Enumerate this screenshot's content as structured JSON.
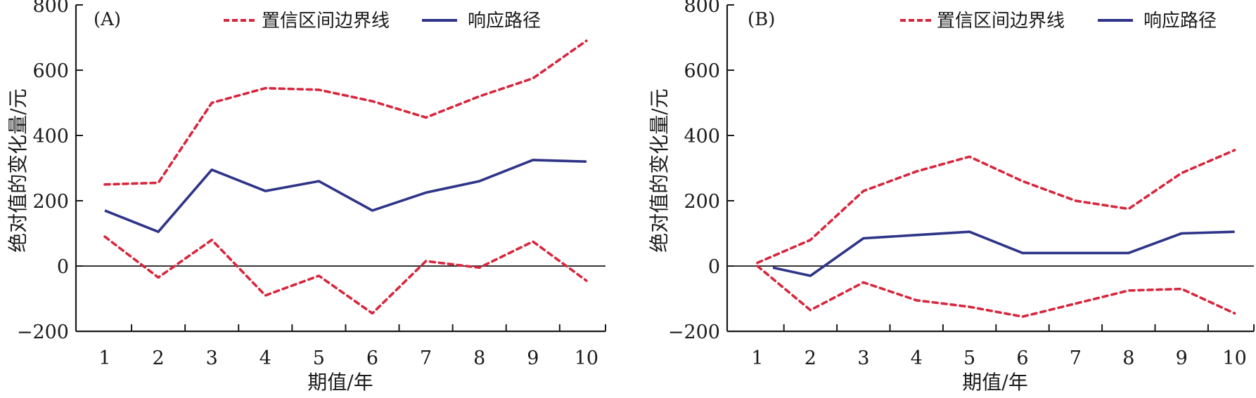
{
  "colors": {
    "bound": "#d7263d",
    "response": "#2e3487",
    "axis": "#1a1a1a"
  },
  "chart_data": [
    {
      "type": "line",
      "panel_label": "(A)",
      "xlabel": "期值/年",
      "ylabel": "绝对值的变化量/元",
      "ylim": [
        -200,
        800
      ],
      "yticks": [
        -200,
        0,
        200,
        400,
        600,
        800
      ],
      "ytick_labels": [
        "−200",
        "0",
        "200",
        "400",
        "600",
        "800"
      ],
      "x": [
        1,
        2,
        3,
        4,
        5,
        6,
        7,
        8,
        9,
        10
      ],
      "xtick_labels": [
        "1",
        "2",
        "3",
        "4",
        "5",
        "6",
        "7",
        "8",
        "9",
        "10"
      ],
      "zero_line": true,
      "legend": {
        "placement": "top",
        "entries": [
          "置信区间边界线",
          "响应路径"
        ]
      },
      "series": [
        {
          "name": "置信区间边界线 (上)",
          "legend_name": "置信区间边界线",
          "style": "dashed",
          "values": [
            250,
            255,
            500,
            545,
            540,
            505,
            455,
            520,
            575,
            690
          ]
        },
        {
          "name": "响应路径",
          "legend_name": "响应路径",
          "style": "solid",
          "values": [
            170,
            105,
            295,
            230,
            260,
            170,
            225,
            260,
            325,
            320
          ]
        },
        {
          "name": "置信区间边界线 (下)",
          "legend_name": "置信区间边界线",
          "style": "dashed",
          "values": [
            90,
            -35,
            80,
            -90,
            -30,
            -145,
            15,
            -5,
            75,
            -45
          ]
        }
      ]
    },
    {
      "type": "line",
      "panel_label": "(B)",
      "xlabel": "期值/年",
      "ylabel": "绝对值的变化量/元",
      "ylim": [
        -200,
        800
      ],
      "yticks": [
        -200,
        0,
        200,
        400,
        600,
        800
      ],
      "ytick_labels": [
        "−200",
        "0",
        "200",
        "400",
        "600",
        "800"
      ],
      "x": [
        1,
        2,
        3,
        4,
        5,
        6,
        7,
        8,
        9,
        10
      ],
      "xtick_labels": [
        "1",
        "2",
        "3",
        "4",
        "5",
        "6",
        "7",
        "8",
        "9",
        "10"
      ],
      "zero_line": true,
      "legend": {
        "placement": "top-right",
        "entries": [
          "置信区间边界线",
          "响应路径"
        ]
      },
      "series": [
        {
          "name": "置信区间边界线 (上)",
          "legend_name": "置信区间边界线",
          "style": "dashed",
          "values": [
            10,
            80,
            230,
            290,
            335,
            260,
            200,
            175,
            285,
            355
          ]
        },
        {
          "name": "响应路径",
          "legend_name": "响应路径",
          "style": "solid",
          "values": [
            -5,
            -30,
            85,
            95,
            105,
            40,
            40,
            40,
            100,
            105
          ]
        },
        {
          "name": "置信区间边界线 (下)",
          "legend_name": "置信区间边界线",
          "style": "dashed",
          "values": [
            0,
            -135,
            -50,
            -105,
            -125,
            -155,
            -115,
            -75,
            -70,
            -145
          ]
        }
      ]
    }
  ]
}
